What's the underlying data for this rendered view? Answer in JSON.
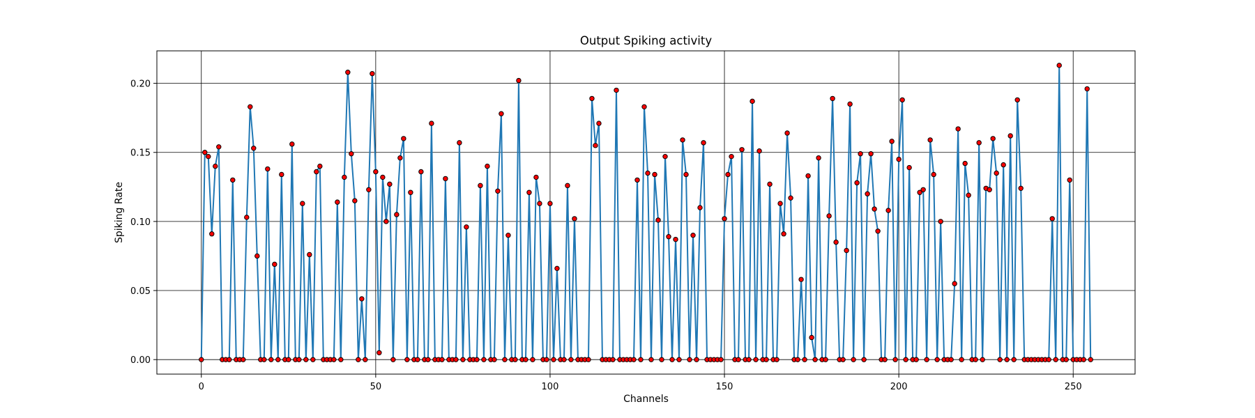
{
  "chart_data": {
    "type": "line",
    "title": "Output Spiking activity",
    "xlabel": "Channels",
    "ylabel": "Spiking Rate",
    "xlim": [
      -12.75,
      267.75
    ],
    "ylim": [
      -0.0105,
      0.2235
    ],
    "xticks": [
      0,
      50,
      100,
      150,
      200,
      250
    ],
    "yticks": [
      0.0,
      0.05,
      0.1,
      0.15,
      0.2
    ],
    "xtick_labels": [
      "0",
      "50",
      "100",
      "150",
      "200",
      "250"
    ],
    "ytick_labels": [
      "0.00",
      "0.05",
      "0.10",
      "0.15",
      "0.20"
    ],
    "grid": true,
    "line_color": "#1f77b4",
    "marker_face_color": "#ff0000",
    "marker_edge_color": "#000000",
    "x_start": 0,
    "values": [
      0.0,
      0.15,
      0.147,
      0.091,
      0.14,
      0.154,
      0.0,
      0.0,
      0.0,
      0.13,
      0.0,
      0.0,
      0.0,
      0.103,
      0.183,
      0.153,
      0.075,
      0.0,
      0.0,
      0.138,
      0.0,
      0.069,
      0.0,
      0.134,
      0.0,
      0.0,
      0.156,
      0.0,
      0.0,
      0.113,
      0.0,
      0.076,
      0.0,
      0.136,
      0.14,
      0.0,
      0.0,
      0.0,
      0.0,
      0.114,
      0.0,
      0.132,
      0.208,
      0.149,
      0.115,
      0.0,
      0.044,
      0.0,
      0.123,
      0.207,
      0.136,
      0.005,
      0.132,
      0.1,
      0.127,
      0.0,
      0.105,
      0.146,
      0.16,
      0.0,
      0.121,
      0.0,
      0.0,
      0.136,
      0.0,
      0.0,
      0.171,
      0.0,
      0.0,
      0.0,
      0.131,
      0.0,
      0.0,
      0.0,
      0.157,
      0.0,
      0.096,
      0.0,
      0.0,
      0.0,
      0.126,
      0.0,
      0.14,
      0.0,
      0.0,
      0.122,
      0.178,
      0.0,
      0.09,
      0.0,
      0.0,
      0.202,
      0.0,
      0.0,
      0.121,
      0.0,
      0.132,
      0.113,
      0.0,
      0.0,
      0.113,
      0.0,
      0.066,
      0.0,
      0.0,
      0.126,
      0.0,
      0.102,
      0.0,
      0.0,
      0.0,
      0.0,
      0.189,
      0.155,
      0.171,
      0.0,
      0.0,
      0.0,
      0.0,
      0.195,
      0.0,
      0.0,
      0.0,
      0.0,
      0.0,
      0.13,
      0.0,
      0.183,
      0.135,
      0.0,
      0.134,
      0.101,
      0.0,
      0.147,
      0.089,
      0.0,
      0.087,
      0.0,
      0.159,
      0.134,
      0.0,
      0.09,
      0.0,
      0.11,
      0.157,
      0.0,
      0.0,
      0.0,
      0.0,
      0.0,
      0.102,
      0.134,
      0.147,
      0.0,
      0.0,
      0.152,
      0.0,
      0.0,
      0.187,
      0.0,
      0.151,
      0.0,
      0.0,
      0.127,
      0.0,
      0.0,
      0.113,
      0.091,
      0.164,
      0.117,
      0.0,
      0.0,
      0.058,
      0.0,
      0.133,
      0.016,
      0.0,
      0.146,
      0.0,
      0.0,
      0.104,
      0.189,
      0.085,
      0.0,
      0.0,
      0.079,
      0.185,
      0.0,
      0.128,
      0.149,
      0.0,
      0.12,
      0.149,
      0.109,
      0.093,
      0.0,
      0.0,
      0.108,
      0.158,
      0.0,
      0.145,
      0.188,
      0.0,
      0.139,
      0.0,
      0.0,
      0.121,
      0.123,
      0.0,
      0.159,
      0.134,
      0.0,
      0.1,
      0.0,
      0.0,
      0.0,
      0.055,
      0.167,
      0.0,
      0.142,
      0.119,
      0.0,
      0.0,
      0.157,
      0.0,
      0.124,
      0.123,
      0.16,
      0.135,
      0.0,
      0.141,
      0.0,
      0.162,
      0.0,
      0.188,
      0.124,
      0.0,
      0.0,
      0.0,
      0.0,
      0.0,
      0.0,
      0.0,
      0.0,
      0.102,
      0.0,
      0.213,
      0.0,
      0.0,
      0.13,
      0.0,
      0.0,
      0.0,
      0.0,
      0.196,
      0.0
    ]
  }
}
